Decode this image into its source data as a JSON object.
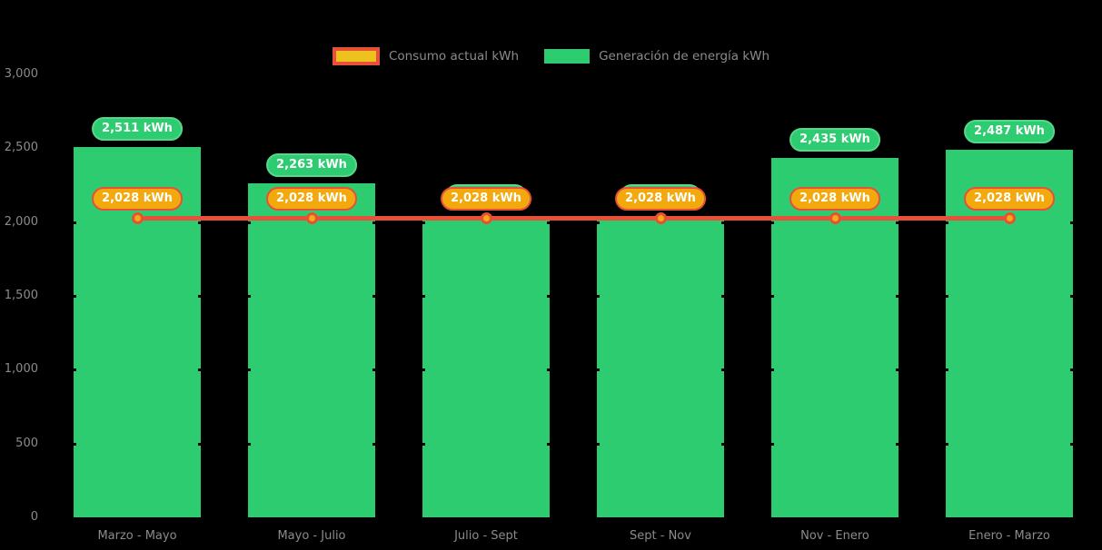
{
  "legend": {
    "consumption": {
      "label": "Consumo actual kWh"
    },
    "generation": {
      "label": "Generación de energía kWh"
    }
  },
  "colors": {
    "background": "#000000",
    "bar_green": "#2ecc71",
    "badge_green_border": "#55d88a",
    "line_red": "#e8503a",
    "badge_orange_fill": "#f2a90d",
    "legend_yellow_fill": "#edc21f",
    "axis_text": "#8b8b89",
    "badge_text": "#ffffff"
  },
  "chart_data": {
    "type": "bar",
    "title": "",
    "categories": [
      "Marzo - Mayo",
      "Mayo - Julio",
      "Julio - Sept",
      "Sept - Nov",
      "Nov - Enero",
      "Enero - Marzo"
    ],
    "series": [
      {
        "name": "Generación de energía kWh",
        "kind": "bar",
        "color": "#2ecc71",
        "values": [
          2511,
          2263,
          2028,
          2028,
          2435,
          2487
        ],
        "labels": [
          "2,511 kWh",
          "2,263 kWh",
          null,
          null,
          "2,435 kWh",
          "2,487 kWh"
        ]
      },
      {
        "name": "Consumo actual kWh",
        "kind": "line",
        "color": "#e8503a",
        "values": [
          2028,
          2028,
          2028,
          2028,
          2028,
          2028
        ],
        "labels": [
          "2,028 kWh",
          "2,028 kWh",
          "2,028 kWh",
          "2,028 kWh",
          "2,028 kWh",
          "2,028 kWh"
        ]
      }
    ],
    "ylim": [
      0,
      3000
    ],
    "y_ticks": [
      {
        "label": "3,000",
        "value": 3000
      },
      {
        "label": "2,500",
        "value": 2500
      },
      {
        "label": "2,000",
        "value": 2000
      },
      {
        "label": "1,500",
        "value": 1500
      },
      {
        "label": "1,000",
        "value": 1000
      },
      {
        "label": "500",
        "value": 500
      },
      {
        "label": "0",
        "value": 0
      }
    ],
    "legend_position": "top-center",
    "grid": "off"
  }
}
